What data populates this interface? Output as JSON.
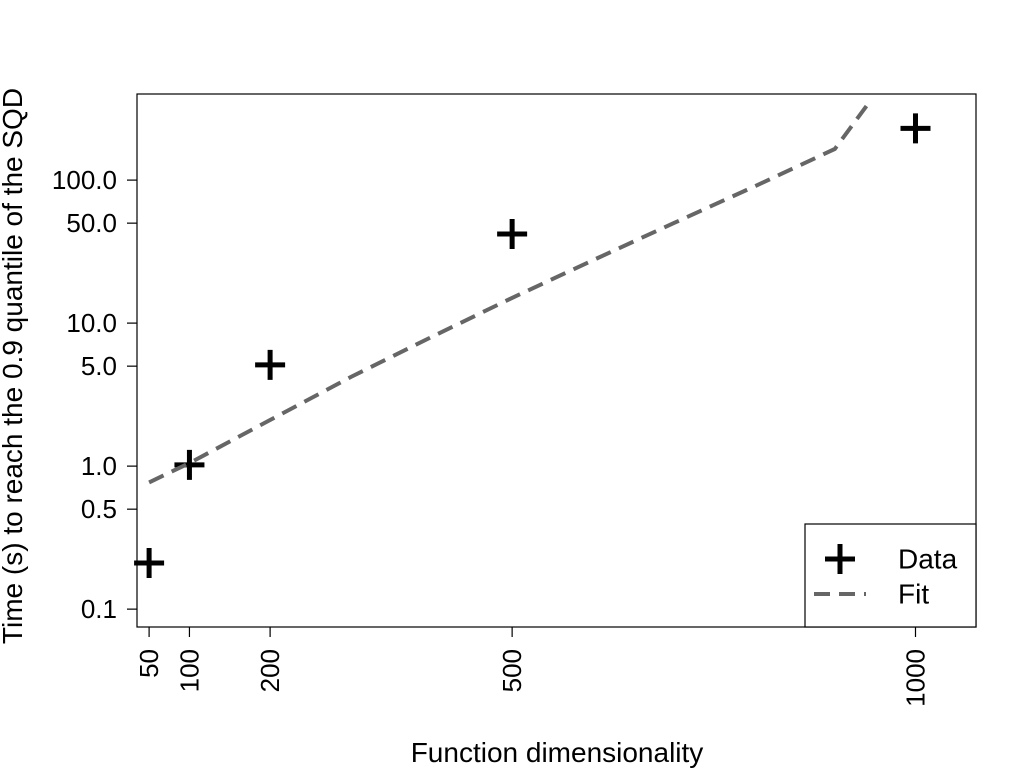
{
  "chart_data": {
    "type": "scatter",
    "title": "",
    "xlabel": "Function dimensionality",
    "ylabel": "Time (s) to reach the 0.9 quantile of the SQD",
    "x_scale": "linear",
    "y_scale": "log",
    "xlim": [
      35,
      1075
    ],
    "ylim": [
      0.075,
      400
    ],
    "x_ticks": [
      50,
      100,
      200,
      500,
      1000
    ],
    "x_tick_labels": [
      "50",
      "100",
      "200",
      "500",
      "1000"
    ],
    "y_ticks": [
      0.1,
      0.5,
      1.0,
      5.0,
      10.0,
      50.0,
      100.0
    ],
    "y_tick_labels": [
      "0.1",
      "0.5",
      "1.0",
      "5.0",
      "10.0",
      "50.0",
      "100.0"
    ],
    "grid": false,
    "legend_position": "bottom-right",
    "series": [
      {
        "name": "Data",
        "kind": "points",
        "marker": "plus",
        "color": "#000000",
        "x": [
          50,
          100,
          200,
          500,
          1000
        ],
        "y": [
          0.21,
          1.02,
          5.1,
          42,
          230
        ]
      },
      {
        "name": "Fit",
        "kind": "line",
        "style": "dashed",
        "color": "#666666",
        "x": [
          50,
          100,
          200,
          300,
          400,
          500,
          600,
          700,
          800,
          900,
          941
        ],
        "y": [
          0.77,
          1.05,
          2.1,
          4.2,
          8.0,
          15.0,
          27.5,
          50,
          90,
          165,
          340
        ]
      }
    ]
  }
}
